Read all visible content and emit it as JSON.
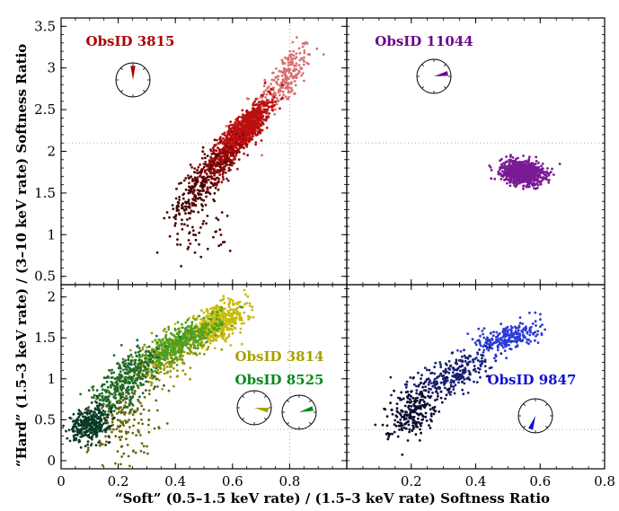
{
  "chart_data": [
    {
      "type": "scatter",
      "panel": "top-left",
      "ylabel": "(3–10 keV rate) Softness Ratio",
      "xlim": [
        0,
        1.0
      ],
      "ylim": [
        0.4,
        3.6
      ],
      "yticks": [
        "0.5",
        "1",
        "1.5",
        "2",
        "2.5",
        "3",
        "3.5"
      ],
      "reference_lines": {
        "y": 2.1,
        "x": 0.8
      },
      "series": [
        {
          "name": "ObsID 3815",
          "color": "#b00000",
          "arrow_angle_deg": 0,
          "groups": [
            {
              "color": "#d97070",
              "cx": 0.78,
              "cy": 2.85,
              "sx": 0.05,
              "sy": 0.22,
              "rho": 0.7,
              "n": 240
            },
            {
              "color": "#bb1010",
              "cx": 0.64,
              "cy": 2.25,
              "sx": 0.045,
              "sy": 0.17,
              "rho": 0.8,
              "n": 900
            },
            {
              "color": "#8a0a0a",
              "cx": 0.55,
              "cy": 1.85,
              "sx": 0.045,
              "sy": 0.15,
              "rho": 0.7,
              "n": 260
            },
            {
              "color": "#4a0505",
              "cx": 0.47,
              "cy": 1.5,
              "sx": 0.045,
              "sy": 0.22,
              "rho": 0.6,
              "n": 200
            },
            {
              "color": "#4a0505",
              "cx": 0.5,
              "cy": 0.95,
              "sx": 0.05,
              "sy": 0.14,
              "rho": 0.1,
              "n": 35
            }
          ]
        }
      ]
    },
    {
      "type": "scatter",
      "panel": "top-right",
      "xlim": [
        0,
        0.8
      ],
      "ylim": [
        0.4,
        3.6
      ],
      "reference_lines": {
        "y": 2.1
      },
      "series": [
        {
          "name": "ObsID 11044",
          "color": "#6b0a8a",
          "arrow_angle_deg": 78,
          "groups": [
            {
              "color": "#7a1a94",
              "cx": 0.545,
              "cy": 1.75,
              "sx": 0.032,
              "sy": 0.07,
              "rho": -0.2,
              "n": 900
            }
          ]
        }
      ]
    },
    {
      "type": "scatter",
      "panel": "bottom-left",
      "xlabel": "“Soft” (0.5–1.5 keV rate) / (1.5–3 keV rate) Softness Ratio",
      "ylabel": "“Hard” (1.5–3 keV rate) / ",
      "xlim": [
        0,
        1.0
      ],
      "ylim": [
        -0.1,
        2.15
      ],
      "xticks": [
        "0",
        "0.2",
        "0.4",
        "0.6",
        "0.8"
      ],
      "yticks": [
        "0",
        "0.5",
        "1",
        "1.5",
        "2"
      ],
      "reference_lines": {
        "y": 0.38,
        "x": 0.8
      },
      "series": [
        {
          "name": "ObsID 3814",
          "color": "#a8a000",
          "arrow_angle_deg": 100,
          "groups": [
            {
              "color": "#c7bb10",
              "cx": 0.55,
              "cy": 1.68,
              "sx": 0.05,
              "sy": 0.12,
              "rho": 0.5,
              "n": 500
            },
            {
              "color": "#9c9a10",
              "cx": 0.38,
              "cy": 1.3,
              "sx": 0.07,
              "sy": 0.17,
              "rho": 0.7,
              "n": 350
            },
            {
              "color": "#6a6a10",
              "cx": 0.22,
              "cy": 0.55,
              "sx": 0.06,
              "sy": 0.3,
              "rho": 0.3,
              "n": 200
            }
          ]
        },
        {
          "name": "ObsID 8525",
          "color": "#0a8a1a",
          "arrow_angle_deg": 75,
          "groups": [
            {
              "color": "#4aa020",
              "cx": 0.42,
              "cy": 1.45,
              "sx": 0.07,
              "sy": 0.16,
              "rho": 0.8,
              "n": 350
            },
            {
              "color": "#1f6a2a",
              "cx": 0.22,
              "cy": 0.95,
              "sx": 0.06,
              "sy": 0.22,
              "rho": 0.7,
              "n": 350
            },
            {
              "color": "#0b3a28",
              "cx": 0.1,
              "cy": 0.45,
              "sx": 0.035,
              "sy": 0.1,
              "rho": 0.2,
              "n": 320
            }
          ]
        }
      ]
    },
    {
      "type": "scatter",
      "panel": "bottom-right",
      "xlim": [
        0,
        0.8
      ],
      "ylim": [
        -0.1,
        2.15
      ],
      "xticks": [
        "0.2",
        "0.4",
        "0.6",
        "0.8"
      ],
      "reference_lines": {
        "y": 0.38
      },
      "series": [
        {
          "name": "ObsID 9847",
          "color": "#1010d0",
          "arrow_angle_deg": 200,
          "groups": [
            {
              "color": "#2a3ad8",
              "cx": 0.5,
              "cy": 1.5,
              "sx": 0.05,
              "sy": 0.1,
              "rho": 0.5,
              "n": 260
            },
            {
              "color": "#1a2070",
              "cx": 0.33,
              "cy": 1.05,
              "sx": 0.06,
              "sy": 0.15,
              "rho": 0.6,
              "n": 260
            },
            {
              "color": "#0a0a30",
              "cx": 0.2,
              "cy": 0.6,
              "sx": 0.04,
              "sy": 0.15,
              "rho": 0.4,
              "n": 220
            }
          ]
        }
      ]
    }
  ]
}
